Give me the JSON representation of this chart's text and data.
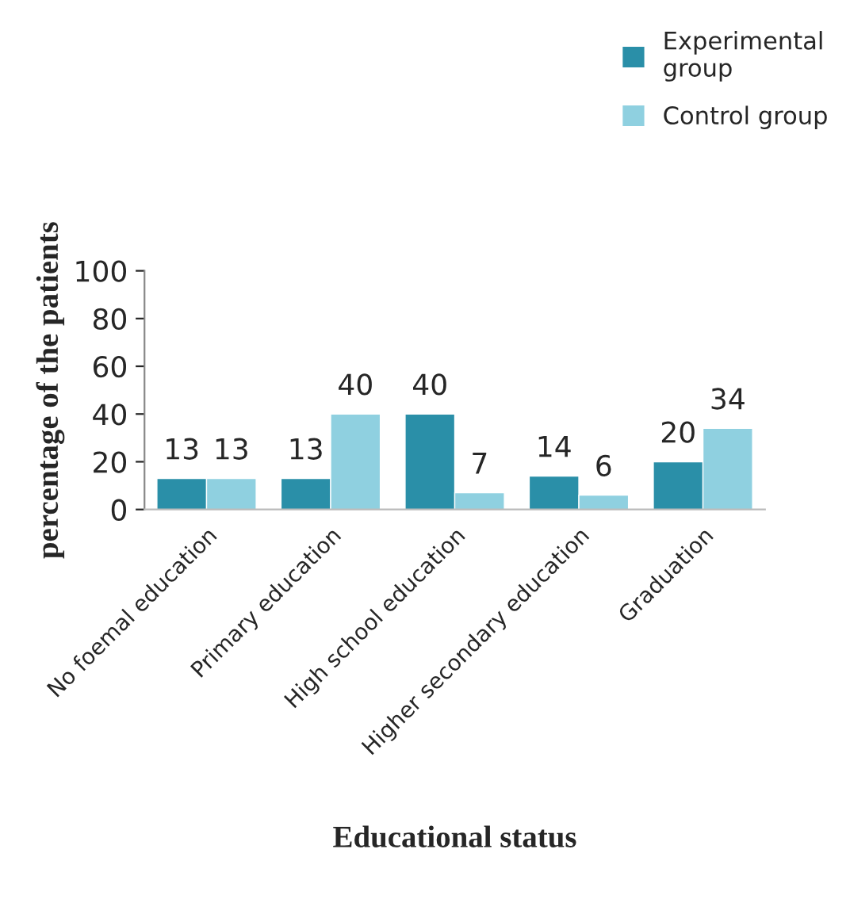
{
  "chart_data": {
    "type": "bar",
    "xlabel": "Educational status",
    "ylabel": "percentage of the patients",
    "categories": [
      "No foemal education",
      "Primary education",
      "High school education",
      "Higher secondary education",
      "Graduation"
    ],
    "series": [
      {
        "name": "Experimental\ngroup",
        "color": "#2a8fa8",
        "values": [
          13,
          13,
          40,
          14,
          20
        ]
      },
      {
        "name": "Control group",
        "color": "#8fd0e0",
        "values": [
          13,
          40,
          7,
          6,
          34
        ]
      }
    ],
    "ylim": [
      0,
      100
    ],
    "yticks": [
      0,
      20,
      40,
      60,
      80,
      100
    ],
    "grid": false,
    "legend": "top right",
    "data_labels": true
  }
}
